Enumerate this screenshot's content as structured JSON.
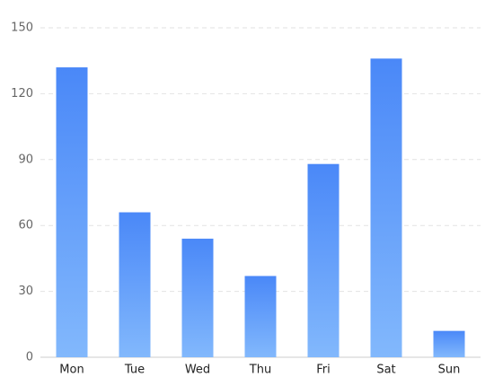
{
  "chart_data": {
    "type": "bar",
    "categories": [
      "Mon",
      "Tue",
      "Wed",
      "Thu",
      "Fri",
      "Sat",
      "Sun"
    ],
    "values": [
      132,
      66,
      54,
      37,
      88,
      136,
      12
    ],
    "gradient": [
      "#4a88f8",
      "#82b8fc"
    ],
    "ylim": [
      0,
      150
    ],
    "yticks": [
      0,
      30,
      60,
      90,
      120,
      150
    ],
    "grid": true
  }
}
